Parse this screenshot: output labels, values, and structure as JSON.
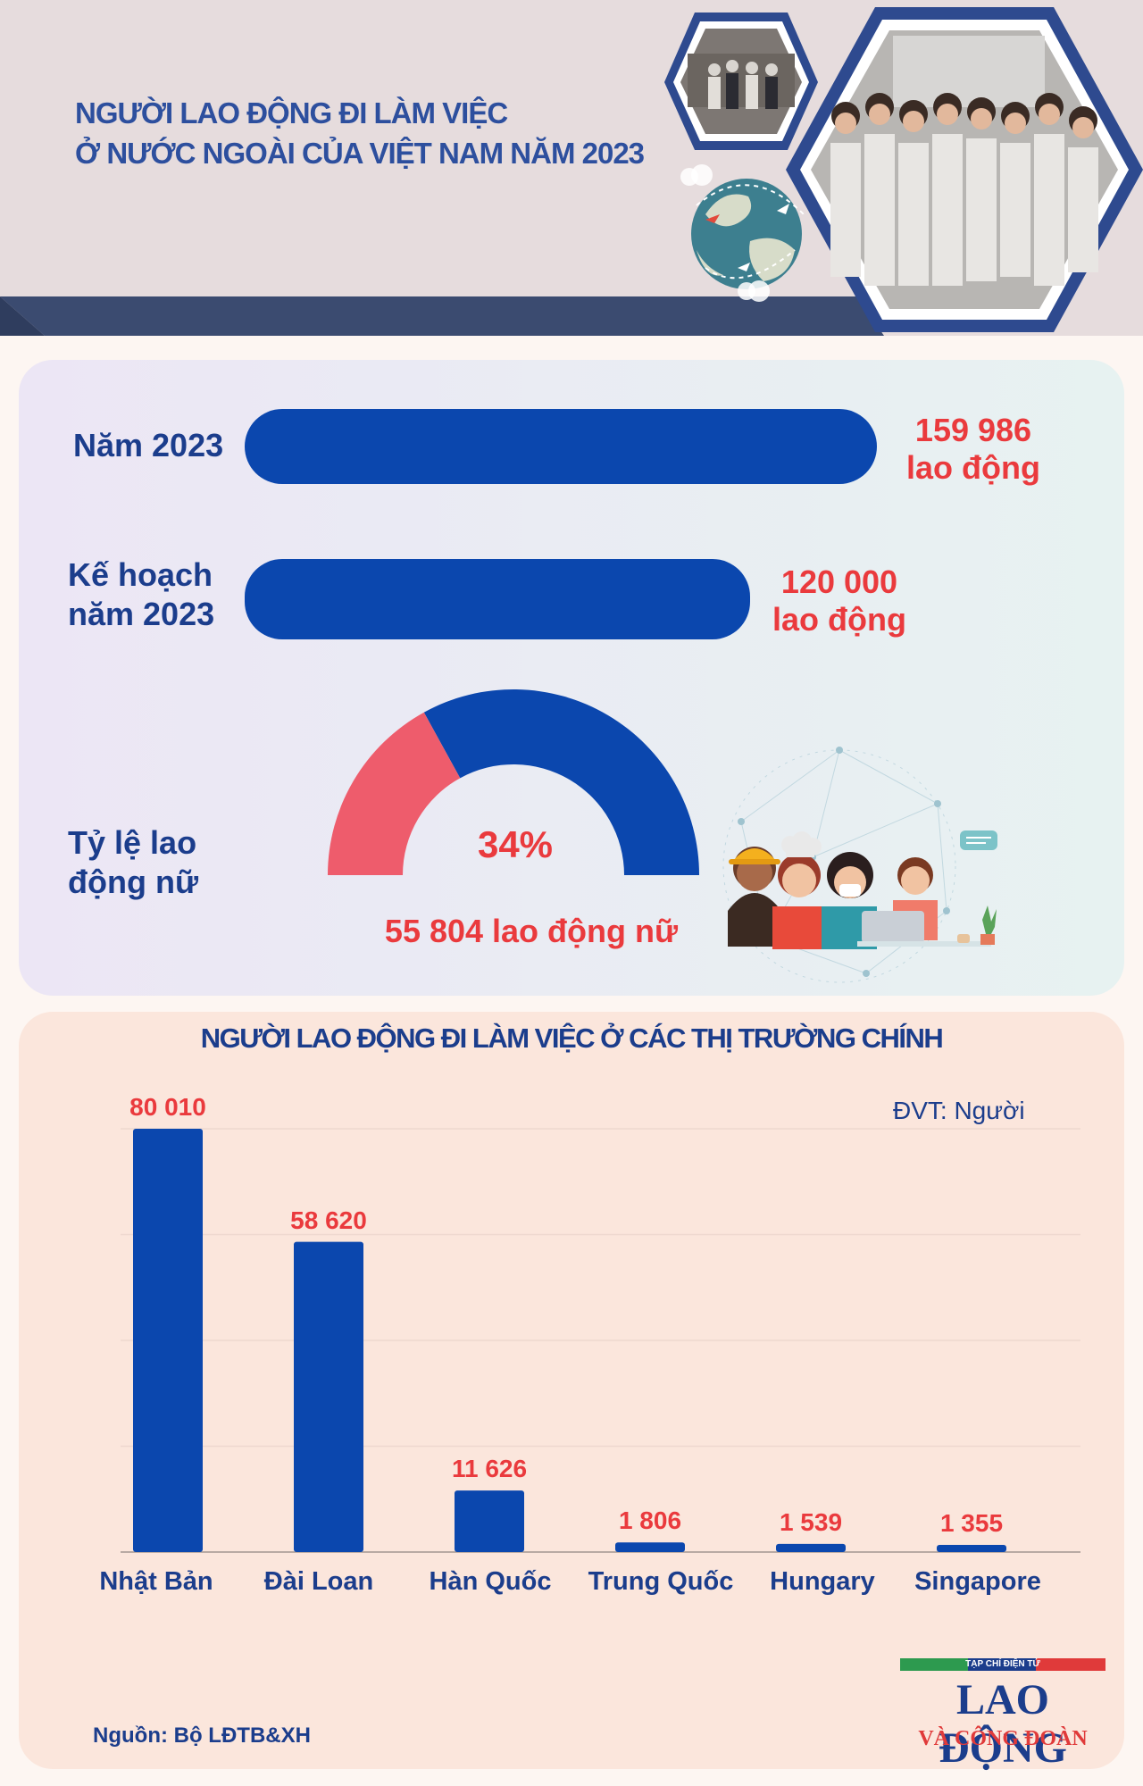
{
  "header": {
    "title_line1": "NGƯỜI LAO ĐỘNG ĐI LÀM VIỆC",
    "title_line2": "Ở NƯỚC NGOÀI CỦA VIỆT NAM NĂM 2023"
  },
  "stats": {
    "actual_label": "Năm 2023",
    "actual_value": "159 986",
    "actual_unit": "lao động",
    "actual_number": 159986,
    "plan_label_line1": "Kế hoạch",
    "plan_label_line2": "năm 2023",
    "plan_value": "120 000",
    "plan_unit": "lao động",
    "plan_number": 120000,
    "female_label_line1": "Tỷ lệ lao",
    "female_label_line2": "động nữ",
    "female_percent_text": "34%",
    "female_percent": 34,
    "female_count_text": "55 804 lao động nữ"
  },
  "colors": {
    "bar_blue": "#0b47ae",
    "value_red": "#ea3a3d",
    "gauge_pink": "#ee5c6c",
    "gauge_blue": "#0b47ae",
    "text_navy": "#1b3d8c",
    "header_title": "#2d4f9e"
  },
  "chart_data": {
    "type": "bar",
    "title": "NGƯỜI LAO ĐỘNG ĐI LÀM VIỆC Ở CÁC THỊ TRƯỜNG CHÍNH",
    "unit_label": "ĐVT: Người",
    "categories": [
      "Nhật Bản",
      "Đài Loan",
      "Hàn Quốc",
      "Trung Quốc",
      "Hungary",
      "Singapore"
    ],
    "values": [
      80010,
      58620,
      11626,
      1806,
      1539,
      1355
    ],
    "value_labels": [
      "80 010",
      "58 620",
      "11 626",
      "1 806",
      "1 539",
      "1 355"
    ],
    "ylim": [
      0,
      80000
    ],
    "grid": true
  },
  "source": "Nguồn: Bộ LĐTB&XH",
  "logo": {
    "top": "TẠP CHÍ ĐIỆN TỬ",
    "main": "LAO ĐỘNG",
    "sub": "VÀ CÔNG ĐOÀN"
  }
}
